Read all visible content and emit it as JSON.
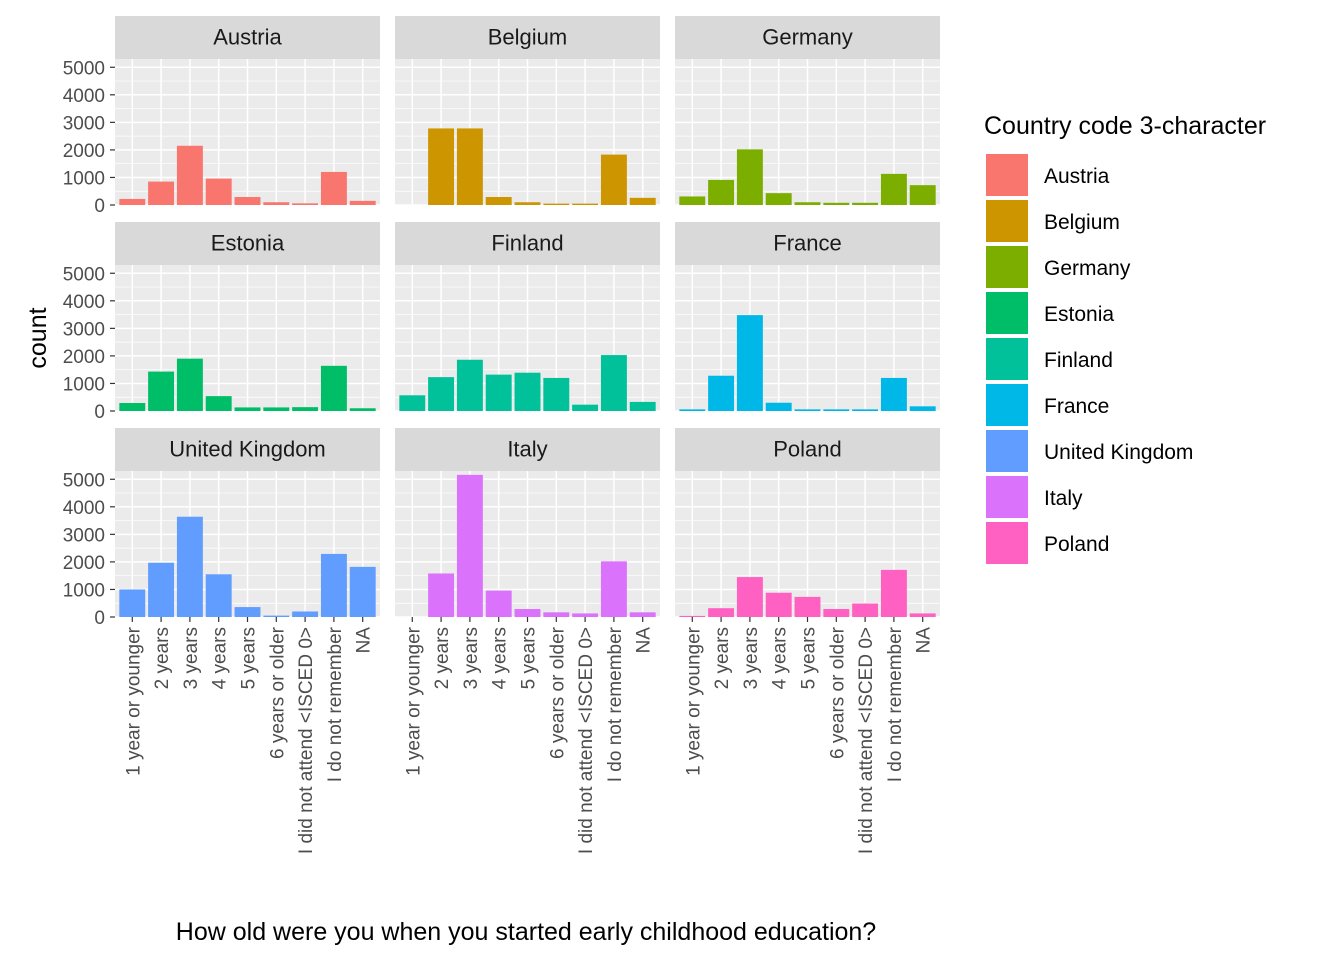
{
  "chart_data": {
    "type": "bar",
    "facet_by": "country",
    "xlabel": "How old were you when you started early childhood education?",
    "ylabel": "count",
    "ylim": [
      0,
      5300
    ],
    "yticks": [
      0,
      1000,
      2000,
      3000,
      4000,
      5000
    ],
    "categories": [
      "1 year or younger",
      "2 years",
      "3 years",
      "4 years",
      "5 years",
      "6 years or older",
      "I did not attend <ISCED 0>",
      "I do not remember",
      "NA"
    ],
    "legend": {
      "title": "Country code 3-character",
      "position": "right"
    },
    "grid": true,
    "panels": [
      {
        "name": "Austria",
        "color": "#F8766D",
        "values": [
          220,
          850,
          2150,
          960,
          290,
          100,
          60,
          1200,
          150
        ]
      },
      {
        "name": "Belgium",
        "color": "#CD9600",
        "values": [
          0,
          2780,
          2780,
          290,
          100,
          50,
          50,
          1830,
          260
        ]
      },
      {
        "name": "Germany",
        "color": "#7CAE00",
        "values": [
          310,
          910,
          2020,
          430,
          100,
          80,
          80,
          1130,
          720
        ]
      },
      {
        "name": "Estonia",
        "color": "#00BE67",
        "values": [
          290,
          1430,
          1900,
          540,
          130,
          130,
          140,
          1640,
          100
        ]
      },
      {
        "name": "Finland",
        "color": "#00C19A",
        "values": [
          570,
          1230,
          1860,
          1320,
          1390,
          1200,
          230,
          2030,
          330
        ]
      },
      {
        "name": "France",
        "color": "#00B8E7",
        "values": [
          60,
          1280,
          3480,
          300,
          60,
          60,
          60,
          1200,
          170
        ]
      },
      {
        "name": "United Kingdom",
        "color": "#619CFF",
        "values": [
          1000,
          1970,
          3640,
          1550,
          360,
          50,
          200,
          2290,
          1820
        ]
      },
      {
        "name": "Italy",
        "color": "#DB72FB",
        "values": [
          0,
          1580,
          5160,
          960,
          290,
          170,
          130,
          2020,
          170
        ]
      },
      {
        "name": "Poland",
        "color": "#FF61C3",
        "values": [
          40,
          320,
          1450,
          880,
          730,
          290,
          490,
          1710,
          130
        ]
      }
    ]
  }
}
